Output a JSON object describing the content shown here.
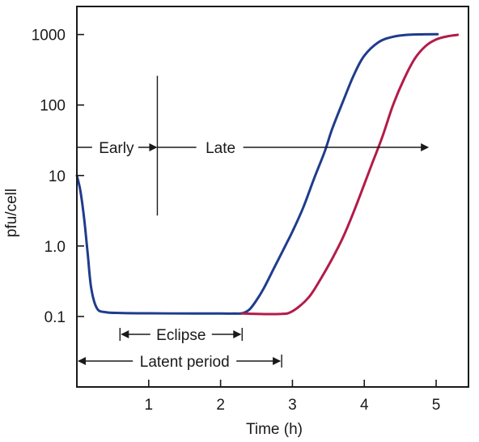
{
  "chart_data": {
    "type": "line",
    "xlabel": "Time (h)",
    "ylabel": "pfu/cell",
    "y_scale": "log",
    "xlim": [
      0,
      5.45
    ],
    "ylim": [
      0.01,
      2500
    ],
    "x_ticks": [
      1,
      2,
      3,
      4,
      5
    ],
    "x_tick_labels": [
      "1",
      "2",
      "3",
      "4",
      "5"
    ],
    "y_ticks": [
      0.1,
      1,
      10,
      100,
      1000
    ],
    "y_tick_labels": [
      "0.1",
      "1.0",
      "10",
      "100",
      "1000"
    ],
    "grid": false,
    "legend": "none",
    "series": [
      {
        "color": "#1f3c8c",
        "points": [
          [
            0,
            10
          ],
          [
            0.05,
            6
          ],
          [
            0.1,
            2.5
          ],
          [
            0.15,
            0.8
          ],
          [
            0.2,
            0.25
          ],
          [
            0.28,
            0.13
          ],
          [
            0.4,
            0.115
          ],
          [
            0.6,
            0.112
          ],
          [
            1.0,
            0.111
          ],
          [
            1.6,
            0.11
          ],
          [
            2.0,
            0.11
          ],
          [
            2.2,
            0.11
          ],
          [
            2.3,
            0.111
          ],
          [
            2.4,
            0.125
          ],
          [
            2.5,
            0.17
          ],
          [
            2.6,
            0.25
          ],
          [
            2.75,
            0.5
          ],
          [
            2.9,
            1.0
          ],
          [
            3.0,
            1.6
          ],
          [
            3.15,
            3.5
          ],
          [
            3.3,
            9
          ],
          [
            3.45,
            22
          ],
          [
            3.55,
            45
          ],
          [
            3.7,
            110
          ],
          [
            3.85,
            260
          ],
          [
            4.0,
            500
          ],
          [
            4.2,
            780
          ],
          [
            4.4,
            930
          ],
          [
            4.6,
            990
          ],
          [
            4.8,
            1005
          ],
          [
            5.02,
            1010
          ]
        ]
      },
      {
        "color": "#b21c48",
        "points": [
          [
            2.3,
            0.11
          ],
          [
            2.5,
            0.109
          ],
          [
            2.7,
            0.108
          ],
          [
            2.85,
            0.109
          ],
          [
            2.95,
            0.112
          ],
          [
            3.1,
            0.14
          ],
          [
            3.25,
            0.2
          ],
          [
            3.4,
            0.35
          ],
          [
            3.55,
            0.65
          ],
          [
            3.7,
            1.3
          ],
          [
            3.85,
            3.0
          ],
          [
            4.0,
            7.5
          ],
          [
            4.1,
            14
          ],
          [
            4.25,
            35
          ],
          [
            4.4,
            100
          ],
          [
            4.55,
            230
          ],
          [
            4.7,
            450
          ],
          [
            4.85,
            680
          ],
          [
            5.0,
            850
          ],
          [
            5.15,
            940
          ],
          [
            5.3,
            990
          ]
        ]
      }
    ],
    "annotations": {
      "early": "Early",
      "late": "Late",
      "eclipse": "Eclipse",
      "latent": "Latent period"
    }
  }
}
